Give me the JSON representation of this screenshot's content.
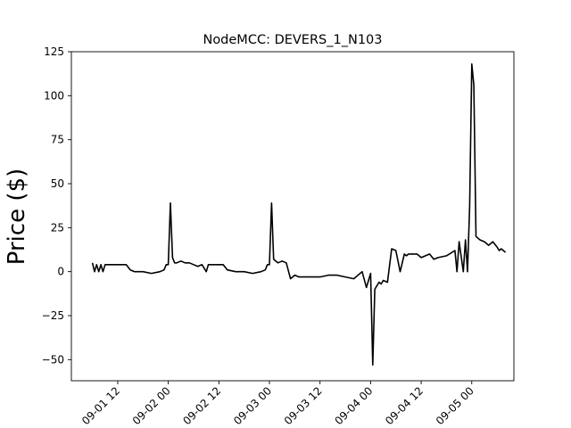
{
  "chart_data": {
    "type": "line",
    "title": "NodeMCC: DEVERS_1_N103",
    "xlabel": "",
    "ylabel": "Price ($)",
    "x_is_datetime": true,
    "xlim": [
      "2018-09-01 01:00",
      "2018-09-05 10:00"
    ],
    "ylim": [
      -62,
      125
    ],
    "x_ticks": [
      "2018-09-01 12:00",
      "2018-09-02 00:00",
      "2018-09-02 12:00",
      "2018-09-03 00:00",
      "2018-09-03 12:00",
      "2018-09-04 00:00",
      "2018-09-04 12:00",
      "2018-09-05 00:00"
    ],
    "x_tick_labels": [
      "09-01 12",
      "09-02 00",
      "09-02 12",
      "09-03 00",
      "09-03 12",
      "09-04 00",
      "09-04 12",
      "09-05 00"
    ],
    "y_ticks": [
      125,
      100,
      75,
      50,
      25,
      0,
      -25,
      -50
    ],
    "y_tick_labels": [
      "125",
      "100",
      "75",
      "50",
      "25",
      "0",
      "−25",
      "−50"
    ],
    "grid": false,
    "line_color": "#000000",
    "series": [
      {
        "x": [
          "2018-09-01 06:00",
          "2018-09-01 06:30",
          "2018-09-01 07:00",
          "2018-09-01 07:30",
          "2018-09-01 08:00",
          "2018-09-01 08:30",
          "2018-09-01 09:00",
          "2018-09-01 10:00",
          "2018-09-01 11:00",
          "2018-09-01 12:00",
          "2018-09-01 14:00",
          "2018-09-01 15:00",
          "2018-09-01 16:00",
          "2018-09-01 18:00",
          "2018-09-01 20:00",
          "2018-09-01 22:00",
          "2018-09-01 23:00",
          "2018-09-01 23:30",
          "2018-09-02 00:00",
          "2018-09-02 00:30",
          "2018-09-02 01:00",
          "2018-09-02 01:30",
          "2018-09-02 02:00",
          "2018-09-02 03:00",
          "2018-09-02 04:00",
          "2018-09-02 05:00",
          "2018-09-02 06:00",
          "2018-09-02 07:00",
          "2018-09-02 08:00",
          "2018-09-02 09:00",
          "2018-09-02 09:30",
          "2018-09-02 10:00",
          "2018-09-02 12:00",
          "2018-09-02 13:00",
          "2018-09-02 14:00",
          "2018-09-02 16:00",
          "2018-09-02 18:00",
          "2018-09-02 20:00",
          "2018-09-02 22:00",
          "2018-09-02 23:00",
          "2018-09-02 23:30",
          "2018-09-03 00:00",
          "2018-09-03 00:30",
          "2018-09-03 01:00",
          "2018-09-03 02:00",
          "2018-09-03 03:00",
          "2018-09-03 04:00",
          "2018-09-03 05:00",
          "2018-09-03 06:00",
          "2018-09-03 07:00",
          "2018-09-03 08:00",
          "2018-09-03 09:00",
          "2018-09-03 10:00",
          "2018-09-03 12:00",
          "2018-09-03 14:00",
          "2018-09-03 16:00",
          "2018-09-03 18:00",
          "2018-09-03 20:00",
          "2018-09-03 22:00",
          "2018-09-03 23:00",
          "2018-09-04 00:00",
          "2018-09-04 00:30",
          "2018-09-04 01:00",
          "2018-09-04 01:30",
          "2018-09-04 02:00",
          "2018-09-04 02:30",
          "2018-09-04 03:00",
          "2018-09-04 04:00",
          "2018-09-04 05:00",
          "2018-09-04 06:00",
          "2018-09-04 07:00",
          "2018-09-04 08:00",
          "2018-09-04 08:30",
          "2018-09-04 09:00",
          "2018-09-04 10:00",
          "2018-09-04 11:00",
          "2018-09-04 12:00",
          "2018-09-04 14:00",
          "2018-09-04 15:00",
          "2018-09-04 16:00",
          "2018-09-04 18:00",
          "2018-09-04 20:00",
          "2018-09-04 20:30",
          "2018-09-04 21:00",
          "2018-09-04 22:00",
          "2018-09-04 22:30",
          "2018-09-04 23:00",
          "2018-09-04 23:30",
          "2018-09-05 00:00",
          "2018-09-05 00:30",
          "2018-09-05 01:00",
          "2018-09-05 01:30",
          "2018-09-05 02:00",
          "2018-09-05 03:00",
          "2018-09-05 04:00",
          "2018-09-05 05:00",
          "2018-09-05 06:00",
          "2018-09-05 06:30",
          "2018-09-05 07:00",
          "2018-09-05 08:00"
        ],
        "y": [
          5,
          0,
          4,
          0,
          4,
          0,
          4,
          4,
          4,
          4,
          4,
          1,
          0,
          0,
          -1,
          0,
          1,
          4,
          4,
          39,
          8,
          5,
          5,
          6,
          5,
          5,
          4,
          3,
          4,
          0,
          4,
          4,
          4,
          4,
          1,
          0,
          0,
          -1,
          0,
          1,
          4,
          4,
          39,
          7,
          5,
          6,
          5,
          -4,
          -2,
          -3,
          -3,
          -3,
          -3,
          -3,
          -2,
          -2,
          -3,
          -4,
          0,
          -9,
          -1,
          -53,
          -10,
          -8,
          -6,
          -7,
          -5,
          -6,
          13,
          12,
          0,
          10,
          9,
          10,
          10,
          10,
          8,
          10,
          7,
          8,
          9,
          12,
          0,
          17,
          0,
          18,
          0,
          37,
          118,
          106,
          20,
          19,
          18,
          17,
          15,
          17,
          14,
          12,
          13,
          11
        ]
      }
    ]
  }
}
